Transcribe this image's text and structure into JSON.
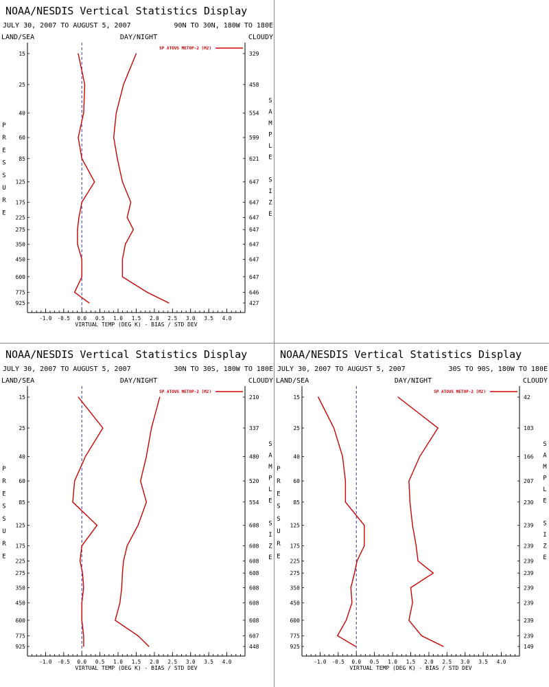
{
  "panel_title": "NOAA/NESDIS Vertical Statistics Display",
  "header_labels": {
    "left": "LAND/SEA",
    "center": "DAY/NIGHT",
    "right": "CLOUDY"
  },
  "xlabel": "VIRTUAL TEMP (DEG K) - BIAS / STD DEV",
  "left_axis_label": [
    "P",
    "R",
    "E",
    "S",
    "S",
    "U",
    "R",
    "E"
  ],
  "right_axis_label": [
    "S",
    "A",
    "M",
    "P",
    "L",
    "E",
    "",
    "S",
    "I",
    "Z",
    "E"
  ],
  "legend_label": "SP ATOVS METOP-2 (M2)",
  "colors": {
    "series": "#cc0000",
    "zero_line": "#3a3aa0",
    "axis": "#000000",
    "divider": "#888888"
  },
  "chart_data": [
    {
      "type": "line",
      "date_range": "JULY 30, 2007 TO AUGUST 5, 2007",
      "region": "90N TO 30N, 180W TO 180E",
      "x_ticks": [
        "-1.0",
        "-0.5",
        "0.0",
        "0.5",
        "1.0",
        "1.5",
        "2.0",
        "2.5",
        "3.0",
        "3.5",
        "4.0"
      ],
      "xlim": [
        -1.5,
        4.5
      ],
      "pressure_levels": [
        15,
        25,
        40,
        60,
        85,
        125,
        175,
        225,
        275,
        350,
        450,
        600,
        775,
        925
      ],
      "sample_size": [
        "329",
        "458",
        "554",
        "599",
        "621",
        "647",
        "647",
        "647",
        "647",
        "647",
        "647",
        "647",
        "646",
        "427"
      ],
      "series": [
        {
          "name": "bias",
          "values": [
            -0.1,
            0.08,
            0.05,
            -0.1,
            0.0,
            0.35,
            0.0,
            -0.08,
            -0.12,
            -0.12,
            0.0,
            0.0,
            -0.2,
            0.2
          ]
        },
        {
          "name": "std_dev",
          "values": [
            1.5,
            1.15,
            0.95,
            0.88,
            0.98,
            1.12,
            1.35,
            1.25,
            1.42,
            1.2,
            1.12,
            1.12,
            1.8,
            2.4
          ]
        }
      ]
    },
    {
      "type": "line",
      "date_range": "JULY 30, 2007 TO AUGUST 5, 2007",
      "region": "30N TO 30S, 180W TO 180E",
      "x_ticks": [
        "-1.0",
        "-0.5",
        "0.0",
        "0.5",
        "1.0",
        "1.5",
        "2.0",
        "2.5",
        "3.0",
        "3.5",
        "4.0"
      ],
      "xlim": [
        -1.5,
        4.5
      ],
      "pressure_levels": [
        15,
        25,
        40,
        60,
        85,
        125,
        175,
        225,
        275,
        350,
        450,
        600,
        775,
        925
      ],
      "sample_size": [
        "210",
        "337",
        "480",
        "520",
        "554",
        "608",
        "608",
        "608",
        "608",
        "608",
        "608",
        "608",
        "607",
        "448"
      ],
      "series": [
        {
          "name": "bias",
          "values": [
            -0.1,
            0.58,
            0.1,
            -0.2,
            -0.25,
            0.42,
            0.0,
            -0.05,
            0.02,
            0.05,
            0.0,
            0.0,
            0.05,
            0.05
          ]
        },
        {
          "name": "std_dev",
          "values": [
            2.15,
            1.92,
            1.78,
            1.62,
            1.78,
            1.55,
            1.25,
            1.15,
            1.12,
            1.1,
            1.05,
            0.92,
            1.55,
            1.85
          ]
        }
      ]
    },
    {
      "type": "line",
      "date_range": "JULY 30, 2007 TO AUGUST 5, 2007",
      "region": "30S TO 90S, 180W TO 180E",
      "x_ticks": [
        "-1.0",
        "-0.5",
        "0.0",
        "0.5",
        "1.0",
        "1.5",
        "2.0",
        "2.5",
        "3.0",
        "3.5",
        "4.0"
      ],
      "xlim": [
        -1.5,
        4.5
      ],
      "pressure_levels": [
        15,
        25,
        40,
        60,
        85,
        125,
        175,
        225,
        275,
        350,
        450,
        600,
        775,
        925
      ],
      "sample_size": [
        "42",
        "103",
        "166",
        "207",
        "230",
        "239",
        "239",
        "239",
        "239",
        "239",
        "239",
        "239",
        "239",
        "149"
      ],
      "series": [
        {
          "name": "bias",
          "values": [
            -1.05,
            -0.62,
            -0.38,
            -0.3,
            -0.3,
            0.22,
            0.22,
            0.02,
            -0.05,
            -0.15,
            -0.12,
            -0.28,
            -0.52,
            -0.02
          ]
        },
        {
          "name": "std_dev",
          "values": [
            1.15,
            2.25,
            1.75,
            1.45,
            1.48,
            1.55,
            1.65,
            1.7,
            2.12,
            1.5,
            1.55,
            1.45,
            1.8,
            2.4
          ]
        }
      ]
    }
  ]
}
